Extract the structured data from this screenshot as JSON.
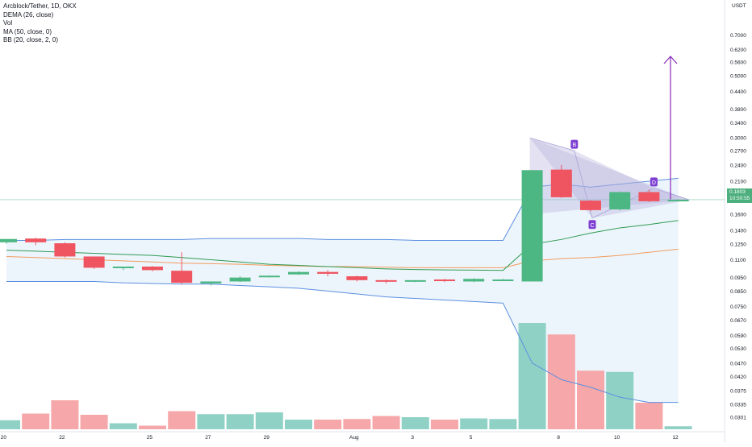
{
  "legend": {
    "symbol": "Arcblock/Tether, 1D, OKX",
    "dema": "DEMA (26, close)",
    "vol": "Vol",
    "ma": "MA (50, close, 0)",
    "bb": "BB (20, close, 2, 0)"
  },
  "price_tag": {
    "price": "0.1803",
    "countdown": "10:50:55"
  },
  "colors": {
    "up": "#4cb782",
    "down": "#ef5560",
    "vol_up": "#8fd1c5",
    "vol_down": "#f6a7a9",
    "bb": "#5b8fe0",
    "bb_fill": "#eaf3fc",
    "ma": "#2e9a50",
    "dema": "#f29b5e",
    "pattern": "#b3acda",
    "arrow": "#8a2ab8",
    "label_bg": "#7e3fd2"
  },
  "chart_data": {
    "type": "candlestick",
    "currency": "USDT",
    "x_ticks": [
      "20",
      "22",
      "25",
      "27",
      "29",
      "Aug",
      "3",
      "5",
      "8",
      "10",
      "12"
    ],
    "y_ticks": [
      "0.7000",
      "0.6200",
      "0.5600",
      "0.5000",
      "0.4400",
      "0.3800",
      "0.3400",
      "0.3000",
      "0.2700",
      "0.2400",
      "0.2100",
      "0.1800",
      "0.1600",
      "0.1400",
      "0.1250",
      "0.1100",
      "0.0950",
      "0.0850",
      "0.0750",
      "0.0670",
      "0.0590",
      "0.0530",
      "0.0470",
      "0.0420",
      "0.0375",
      "0.0335",
      "0.0301"
    ],
    "price_scale": "log",
    "ylim": [
      0.0301,
      0.77
    ],
    "candles": [
      {
        "o": 0.127,
        "h": 0.13,
        "l": 0.1255,
        "c": 0.1305
      },
      {
        "o": 0.131,
        "h": 0.132,
        "l": 0.124,
        "c": 0.127
      },
      {
        "o": 0.126,
        "h": 0.127,
        "l": 0.112,
        "c": 0.113
      },
      {
        "o": 0.113,
        "h": 0.113,
        "l": 0.102,
        "c": 0.103
      },
      {
        "o": 0.103,
        "h": 0.104,
        "l": 0.101,
        "c": 0.104
      },
      {
        "o": 0.104,
        "h": 0.1045,
        "l": 0.1,
        "c": 0.101
      },
      {
        "o": 0.1005,
        "h": 0.117,
        "l": 0.09,
        "c": 0.091
      },
      {
        "o": 0.0905,
        "h": 0.092,
        "l": 0.089,
        "c": 0.092
      },
      {
        "o": 0.092,
        "h": 0.096,
        "l": 0.0915,
        "c": 0.095
      },
      {
        "o": 0.0955,
        "h": 0.0965,
        "l": 0.095,
        "c": 0.0965
      },
      {
        "o": 0.0975,
        "h": 0.1,
        "l": 0.097,
        "c": 0.0995
      },
      {
        "o": 0.0995,
        "h": 0.101,
        "l": 0.096,
        "c": 0.098
      },
      {
        "o": 0.096,
        "h": 0.0965,
        "l": 0.092,
        "c": 0.093
      },
      {
        "o": 0.093,
        "h": 0.0935,
        "l": 0.0905,
        "c": 0.0925
      },
      {
        "o": 0.092,
        "h": 0.093,
        "l": 0.0915,
        "c": 0.093
      },
      {
        "o": 0.0935,
        "h": 0.094,
        "l": 0.0915,
        "c": 0.0925
      },
      {
        "o": 0.092,
        "h": 0.0945,
        "l": 0.0915,
        "c": 0.094
      },
      {
        "o": 0.0935,
        "h": 0.094,
        "l": 0.093,
        "c": 0.0935
      },
      {
        "o": 0.092,
        "h": 0.23,
        "l": 0.092,
        "c": 0.23
      },
      {
        "o": 0.231,
        "h": 0.24,
        "l": 0.183,
        "c": 0.184
      },
      {
        "o": 0.179,
        "h": 0.18,
        "l": 0.164,
        "c": 0.1655
      },
      {
        "o": 0.1665,
        "h": 0.193,
        "l": 0.165,
        "c": 0.192
      },
      {
        "o": 0.192,
        "h": 0.196,
        "l": 0.177,
        "c": 0.178
      },
      {
        "o": 0.1795,
        "h": 0.181,
        "l": 0.178,
        "c": 0.1803
      }
    ],
    "volume": [
      {
        "v": 0.15,
        "up": true
      },
      {
        "v": 0.26,
        "up": false
      },
      {
        "v": 0.48,
        "up": false
      },
      {
        "v": 0.24,
        "up": false
      },
      {
        "v": 0.1,
        "up": true
      },
      {
        "v": 0.06,
        "up": false
      },
      {
        "v": 0.3,
        "up": false
      },
      {
        "v": 0.25,
        "up": true
      },
      {
        "v": 0.25,
        "up": true
      },
      {
        "v": 0.28,
        "up": true
      },
      {
        "v": 0.16,
        "up": true
      },
      {
        "v": 0.16,
        "up": false
      },
      {
        "v": 0.17,
        "up": false
      },
      {
        "v": 0.22,
        "up": false
      },
      {
        "v": 0.2,
        "up": true
      },
      {
        "v": 0.16,
        "up": false
      },
      {
        "v": 0.18,
        "up": true
      },
      {
        "v": 0.17,
        "up": true
      },
      {
        "v": 1.76,
        "up": true
      },
      {
        "v": 1.57,
        "up": false
      },
      {
        "v": 0.97,
        "up": false
      },
      {
        "v": 0.95,
        "up": true
      },
      {
        "v": 0.44,
        "up": false
      },
      {
        "v": 0.05,
        "up": true
      }
    ],
    "bb_upper": [
      0.129,
      0.129,
      0.13,
      0.13,
      0.13,
      0.13,
      0.13,
      0.131,
      0.131,
      0.131,
      0.131,
      0.13,
      0.13,
      0.13,
      0.129,
      0.129,
      0.129,
      0.129,
      0.2,
      0.205,
      0.2,
      0.205,
      0.21,
      0.215
    ],
    "bb_lower": [
      0.092,
      0.092,
      0.092,
      0.092,
      0.091,
      0.0905,
      0.09,
      0.09,
      0.089,
      0.088,
      0.087,
      0.085,
      0.083,
      0.081,
      0.08,
      0.079,
      0.078,
      0.077,
      0.047,
      0.041,
      0.0385,
      0.0355,
      0.034,
      0.034
    ],
    "ma": [
      0.119,
      0.118,
      0.117,
      0.116,
      0.115,
      0.114,
      0.112,
      0.11,
      0.108,
      0.106,
      0.105,
      0.104,
      0.103,
      0.102,
      0.1015,
      0.1012,
      0.101,
      0.1008,
      0.125,
      0.13,
      0.137,
      0.143,
      0.147,
      0.152
    ],
    "dema": [
      0.113,
      0.112,
      0.111,
      0.11,
      0.109,
      0.108,
      0.107,
      0.1065,
      0.106,
      0.105,
      0.1045,
      0.104,
      0.104,
      0.1035,
      0.103,
      0.103,
      0.103,
      0.103,
      0.109,
      0.111,
      0.112,
      0.114,
      0.117,
      0.12
    ],
    "pattern_labels": [
      "B",
      "C",
      "D"
    ]
  }
}
